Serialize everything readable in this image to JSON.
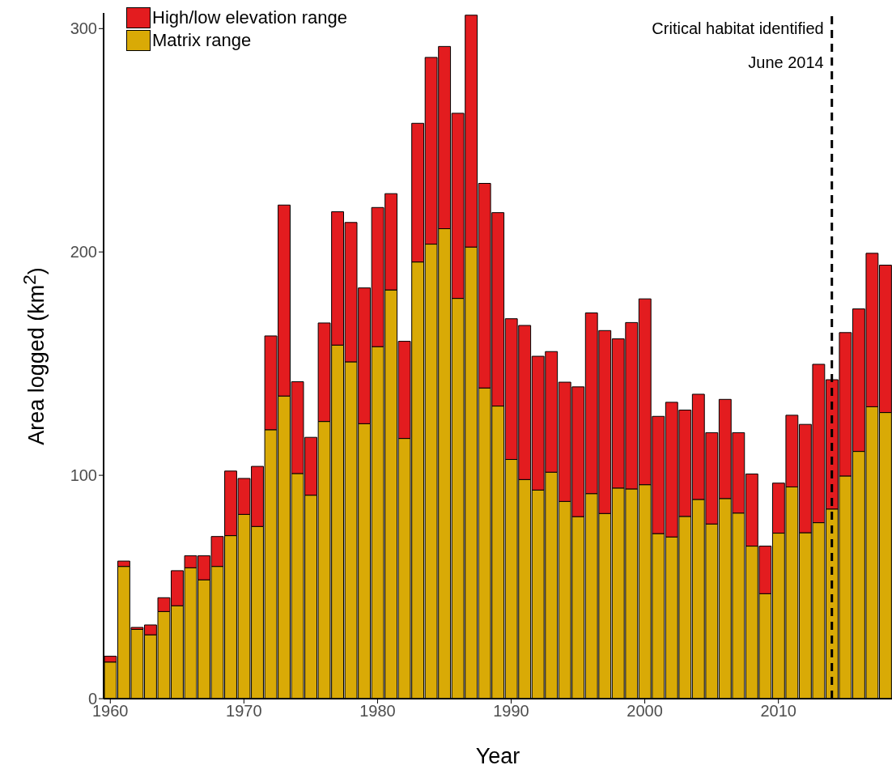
{
  "chart_data": {
    "type": "bar",
    "xlabel": "Year",
    "ylabel": "Area logged (km$^{2}$)",
    "stacked": true,
    "x": [
      1960,
      1961,
      1962,
      1963,
      1964,
      1965,
      1966,
      1967,
      1968,
      1969,
      1970,
      1971,
      1972,
      1973,
      1974,
      1975,
      1976,
      1977,
      1978,
      1979,
      1980,
      1981,
      1982,
      1983,
      1984,
      1985,
      1986,
      1987,
      1988,
      1989,
      1990,
      1991,
      1992,
      1993,
      1994,
      1995,
      1996,
      1997,
      1998,
      1999,
      2000,
      2001,
      2002,
      2003,
      2004,
      2005,
      2006,
      2007,
      2008,
      2009,
      2010,
      2011,
      2012,
      2013,
      2014,
      2015,
      2016,
      2017,
      2018
    ],
    "series": [
      {
        "name": "Matrix range",
        "color": "#d9aa06",
        "values": [
          16.4,
          59.2,
          31.0,
          28.6,
          39.0,
          41.6,
          58.6,
          53.2,
          59.2,
          73.0,
          82.5,
          77.1,
          120.4,
          135.5,
          100.8,
          91.1,
          124.1,
          158.3,
          150.8,
          123.1,
          157.6,
          183.0,
          116.5,
          195.5,
          203.5,
          210.4,
          179.2,
          202.2,
          139.1,
          131.0,
          107.1,
          98.1,
          93.4,
          101.4,
          88.3,
          81.5,
          91.8,
          82.9,
          94.3,
          93.9,
          95.8,
          73.9,
          72.4,
          81.6,
          89.2,
          78.2,
          89.6,
          83.1,
          68.3,
          47.0,
          74.1,
          94.8,
          74.3,
          78.8,
          84.9,
          99.7,
          110.7,
          130.7,
          128.1
        ]
      },
      {
        "name": "High/low elevation range",
        "color": "#e31c1f",
        "values": [
          2.6,
          2.4,
          0.9,
          4.4,
          6.2,
          15.7,
          5.4,
          10.8,
          13.4,
          28.9,
          16.1,
          26.9,
          42.0,
          85.5,
          41.1,
          25.9,
          44.1,
          59.7,
          62.4,
          60.8,
          62.3,
          43.1,
          43.5,
          62.1,
          83.6,
          81.6,
          82.9,
          103.8,
          91.6,
          86.6,
          63.0,
          69.0,
          59.9,
          54.0,
          53.4,
          58.1,
          80.9,
          81.9,
          66.8,
          74.5,
          83.2,
          52.5,
          60.3,
          47.6,
          47.1,
          40.9,
          44.4,
          36.0,
          32.3,
          21.3,
          22.4,
          32.1,
          48.5,
          70.9,
          57.9,
          64.2,
          63.8,
          68.7,
          66.0
        ]
      }
    ],
    "xlim": [
      1959.5,
      2018.5
    ],
    "xticks": [
      1960,
      1970,
      1980,
      1990,
      2000,
      2010
    ],
    "ylim": [
      0,
      307
    ],
    "yticks": [
      0,
      100,
      200,
      300
    ],
    "ref_lines": [
      {
        "axis": "x",
        "value": 2014,
        "label": "Critical habitat identified\nJune 2014",
        "color": "#000000",
        "line_style": "dashed"
      }
    ],
    "grid": false,
    "legend": "top left"
  }
}
